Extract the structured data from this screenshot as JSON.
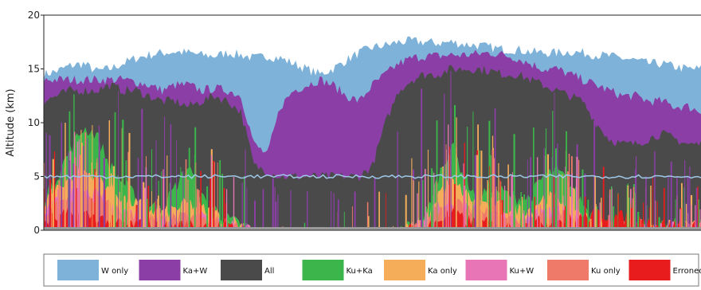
{
  "chart_data": {
    "type": "area",
    "title": "",
    "xlabel": "",
    "ylabel": "Altitude (km)",
    "ylim": [
      0,
      20
    ],
    "yticks": [
      "0",
      "5",
      "10",
      "15",
      "20"
    ],
    "xlim": [
      0,
      100
    ],
    "grid": false,
    "legend_position": "bottom",
    "melting_level_km": 5,
    "x": [
      0,
      2,
      4,
      6,
      8,
      10,
      12,
      14,
      16,
      18,
      20,
      22,
      24,
      26,
      28,
      30,
      32,
      34,
      36,
      38,
      40,
      42,
      44,
      46,
      48,
      50,
      52,
      54,
      56,
      58,
      60,
      62,
      64,
      66,
      68,
      70,
      72,
      74,
      76,
      78,
      80,
      82,
      84,
      86,
      88,
      90,
      92,
      94,
      96,
      98,
      100
    ],
    "series": [
      {
        "name": "W only",
        "color": "#7fb2d8",
        "values": [
          14.5,
          14.8,
          15.3,
          15.5,
          14.8,
          15.0,
          15.5,
          16.0,
          16.3,
          16.5,
          16.6,
          16.5,
          16.3,
          16.2,
          16.5,
          16.3,
          16.0,
          16.2,
          16.0,
          15.5,
          15.0,
          14.5,
          15.0,
          15.8,
          16.5,
          17.0,
          17.2,
          17.5,
          17.6,
          17.5,
          17.4,
          17.5,
          17.3,
          17.2,
          17.0,
          16.8,
          16.8,
          16.6,
          16.5,
          16.5,
          16.6,
          16.5,
          16.3,
          16.2,
          16.0,
          15.8,
          15.5,
          15.5,
          15.2,
          15.0,
          15.0
        ]
      },
      {
        "name": "Ka+W",
        "color": "#8b3fa6",
        "values": [
          14.0,
          14.0,
          14.0,
          14.0,
          14.0,
          14.0,
          14.0,
          13.8,
          13.5,
          13.0,
          13.5,
          13.5,
          13.0,
          13.2,
          13.0,
          12.5,
          8.0,
          7.0,
          11.5,
          13.0,
          13.5,
          14.0,
          13.5,
          12.5,
          12.0,
          13.5,
          14.5,
          15.5,
          16.0,
          16.2,
          16.2,
          16.3,
          16.3,
          16.4,
          16.5,
          16.3,
          16.0,
          15.5,
          15.0,
          15.0,
          14.5,
          14.0,
          13.5,
          13.0,
          12.5,
          12.5,
          12.0,
          12.0,
          11.5,
          11.5,
          11.0
        ]
      },
      {
        "name": "All",
        "color": "#4a4a4a",
        "values": [
          12.0,
          12.5,
          13.0,
          13.0,
          13.0,
          13.5,
          13.0,
          13.0,
          12.5,
          12.0,
          12.0,
          11.5,
          12.0,
          12.5,
          12.0,
          11.0,
          6.0,
          5.5,
          5.0,
          5.0,
          5.0,
          5.0,
          5.0,
          5.0,
          5.0,
          6.0,
          10.0,
          13.0,
          14.0,
          14.5,
          14.5,
          15.0,
          15.0,
          15.0,
          14.8,
          14.5,
          14.5,
          14.0,
          13.5,
          13.0,
          12.5,
          12.0,
          10.0,
          8.5,
          8.0,
          8.0,
          8.5,
          9.0,
          8.5,
          8.0,
          8.0
        ]
      },
      {
        "name": "Ku+Ka",
        "color": "#3cb64a",
        "values": [
          3.0,
          5.0,
          7.5,
          9.5,
          9.0,
          6.0,
          4.5,
          3.0,
          2.5,
          2.0,
          4.0,
          6.0,
          3.0,
          2.0,
          1.0,
          0.5,
          0.0,
          0.0,
          0.0,
          0.0,
          0.0,
          0.0,
          0.0,
          0.0,
          0.0,
          0.0,
          0.0,
          0.0,
          0.5,
          1.0,
          5.0,
          8.0,
          5.0,
          3.0,
          4.0,
          3.5,
          3.0,
          3.0,
          5.0,
          5.5,
          4.5,
          2.5,
          1.0,
          0.5,
          0.5,
          0.5,
          0.5,
          0.5,
          0.5,
          0.5,
          0.5
        ]
      },
      {
        "name": "Ka only",
        "color": "#f5ad5a",
        "values": [
          2.5,
          4.0,
          5.0,
          5.5,
          5.0,
          4.0,
          3.0,
          2.5,
          2.0,
          1.5,
          2.0,
          2.5,
          2.0,
          1.5,
          1.0,
          0.5,
          0.0,
          0.0,
          0.0,
          0.0,
          0.0,
          0.0,
          0.0,
          0.0,
          0.0,
          0.0,
          0.0,
          0.0,
          0.3,
          0.5,
          3.5,
          4.5,
          3.5,
          2.5,
          2.5,
          2.0,
          2.0,
          2.0,
          3.0,
          3.0,
          2.5,
          1.5,
          0.5,
          0.3,
          0.3,
          0.3,
          0.3,
          0.3,
          0.3,
          0.3,
          0.3
        ]
      },
      {
        "name": "Ku+W",
        "color": "#e876b6",
        "values": [
          1.6,
          2.6,
          3.2,
          3.5,
          3.2,
          2.4,
          1.8,
          1.5,
          1.2,
          1.0,
          1.2,
          1.4,
          1.2,
          0.9,
          0.6,
          0.3,
          0.0,
          0.0,
          0.0,
          0.0,
          0.0,
          0.0,
          0.0,
          0.0,
          0.0,
          0.0,
          0.0,
          0.0,
          0.2,
          0.4,
          2.2,
          2.8,
          2.2,
          1.6,
          1.6,
          1.2,
          1.2,
          1.2,
          1.8,
          1.8,
          1.5,
          0.8,
          0.3,
          0.2,
          0.2,
          0.2,
          0.2,
          0.2,
          0.2,
          0.2,
          0.2
        ]
      },
      {
        "name": "Ku only",
        "color": "#f07a6a",
        "values": [
          1.4,
          2.4,
          3.0,
          3.2,
          3.0,
          2.2,
          1.6,
          1.2,
          1.0,
          0.8,
          1.0,
          1.2,
          1.0,
          0.8,
          0.5,
          0.2,
          0.0,
          0.0,
          0.0,
          0.0,
          0.0,
          0.0,
          0.0,
          0.0,
          0.0,
          0.0,
          0.0,
          0.0,
          0.2,
          0.3,
          2.0,
          2.5,
          2.0,
          1.5,
          1.5,
          1.0,
          1.0,
          1.0,
          1.5,
          1.5,
          1.2,
          0.7,
          0.3,
          0.2,
          0.2,
          0.2,
          0.2,
          0.2,
          0.2,
          0.2,
          0.2
        ]
      },
      {
        "name": "Erroneous",
        "color": "#e81c1c",
        "values": [
          0.8,
          1.2,
          1.5,
          1.5,
          1.2,
          0.8,
          0.6,
          0.5,
          0.4,
          0.3,
          0.4,
          0.5,
          0.4,
          0.3,
          0.2,
          0.1,
          0.0,
          0.0,
          0.0,
          0.0,
          0.0,
          0.0,
          0.0,
          0.0,
          0.0,
          0.0,
          0.0,
          0.0,
          0.1,
          0.2,
          1.0,
          1.5,
          1.0,
          0.6,
          0.6,
          0.4,
          0.4,
          0.5,
          0.8,
          0.9,
          1.0,
          1.2,
          1.5,
          1.4,
          1.2,
          1.0,
          0.8,
          0.6,
          0.5,
          0.4,
          0.3
        ]
      }
    ]
  }
}
